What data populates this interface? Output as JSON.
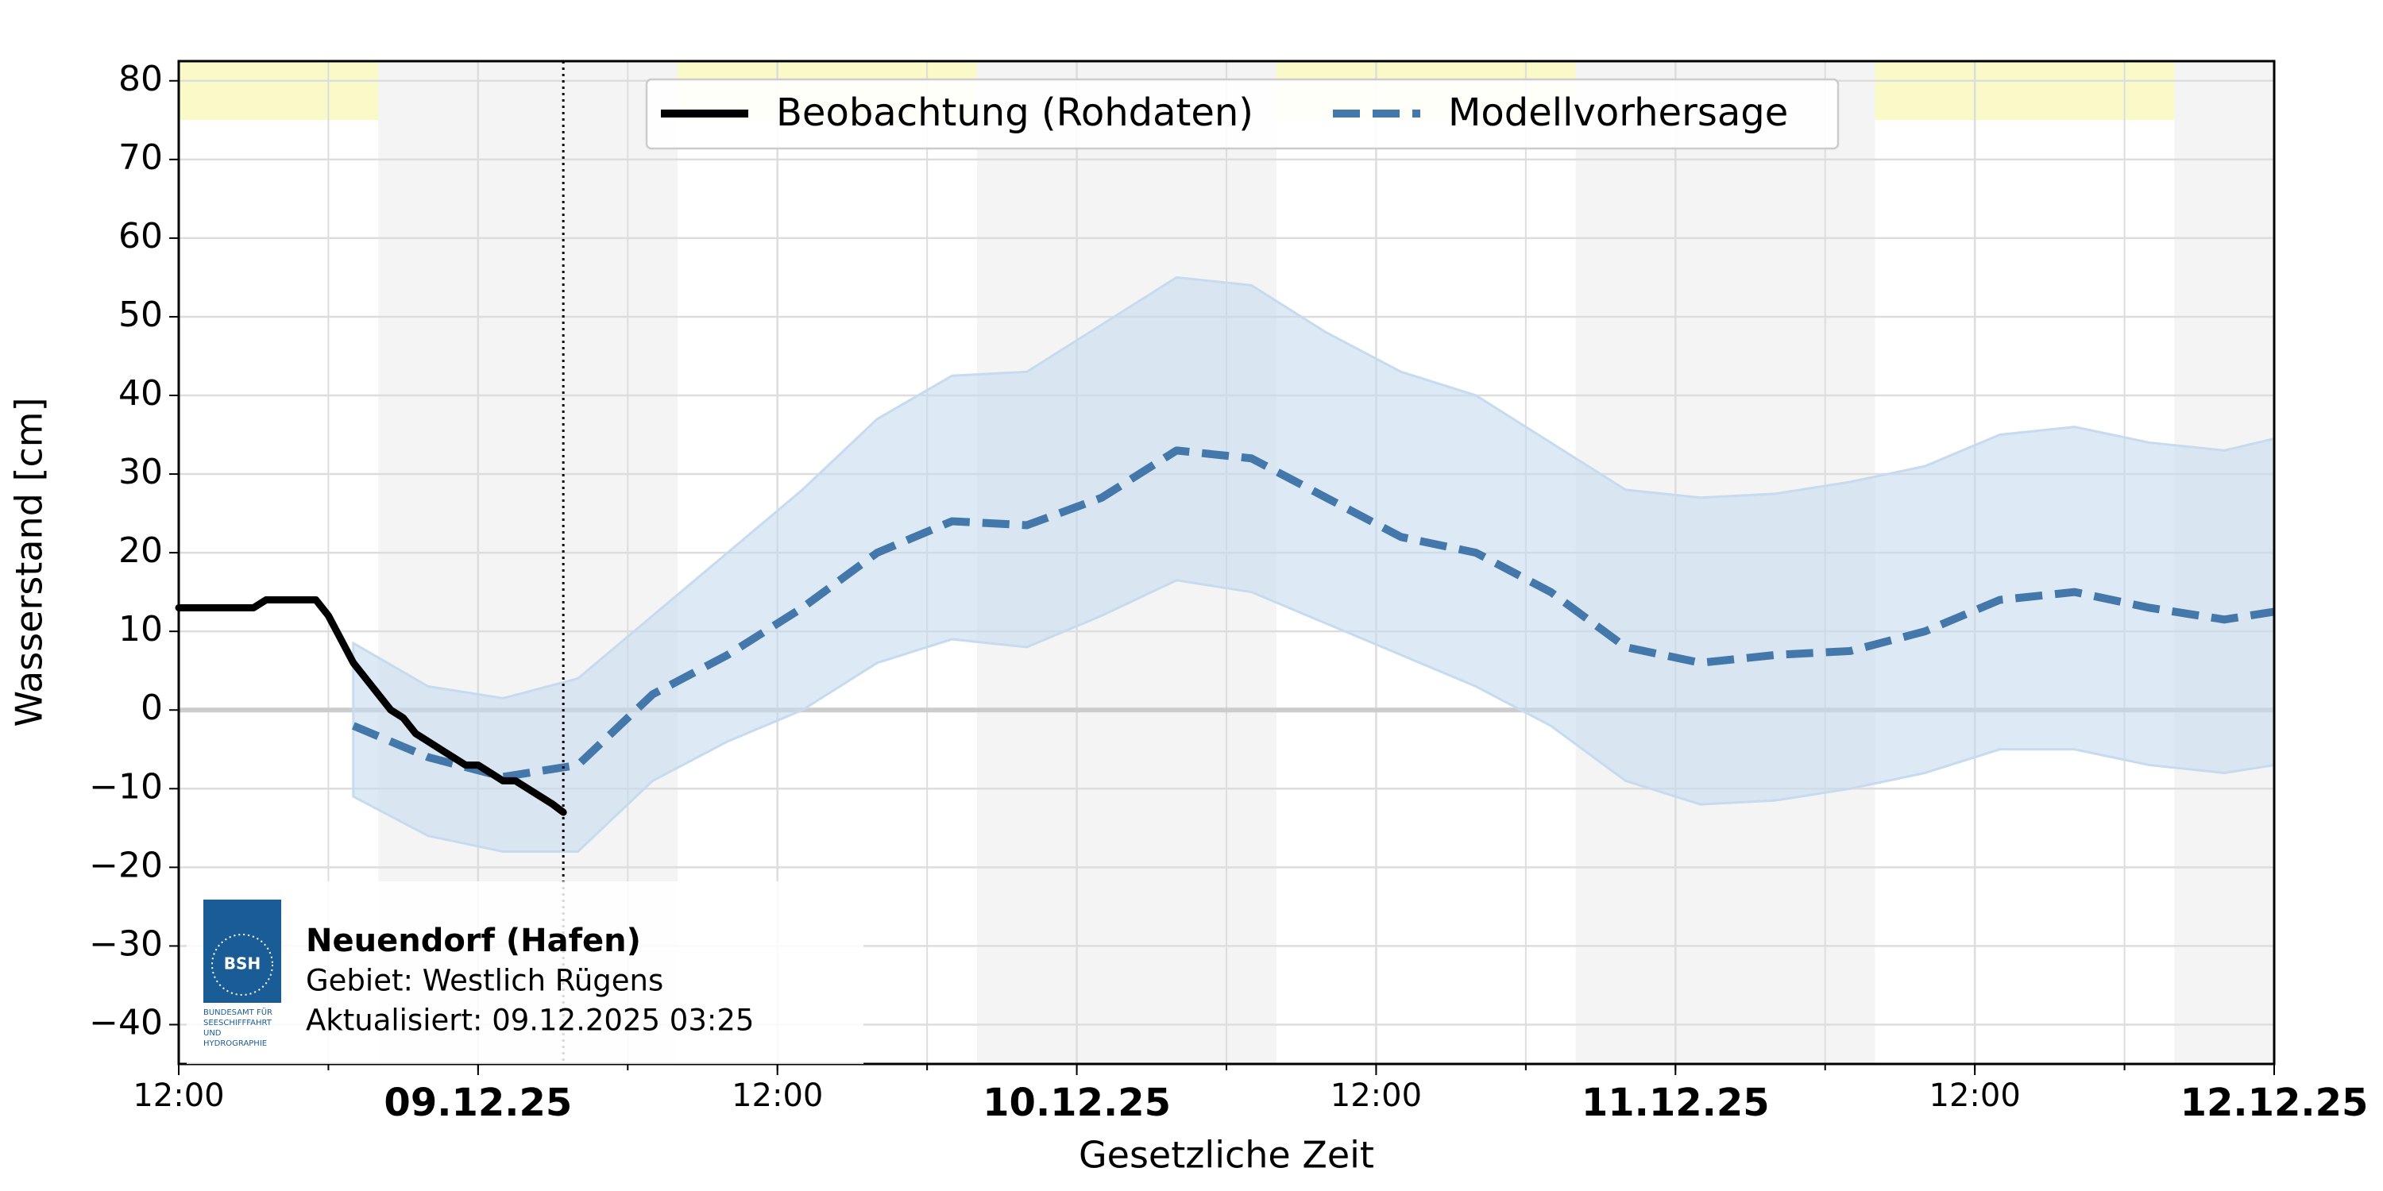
{
  "chart_data": {
    "type": "line",
    "ylabel": "Wasserstand [cm]",
    "xlabel": "Gesetzliche Zeit",
    "xlim": [
      "2025-12-08T12:00",
      "2025-12-12T00:00"
    ],
    "xticks": [
      {
        "value": "2025-12-08T12:00",
        "label": "12:00"
      },
      {
        "value": "2025-12-09T00:00",
        "label": "09.12.25"
      },
      {
        "value": "2025-12-09T12:00",
        "label": "12:00"
      },
      {
        "value": "2025-12-10T00:00",
        "label": "10.12.25"
      },
      {
        "value": "2025-12-10T12:00",
        "label": "12:00"
      },
      {
        "value": "2025-12-11T00:00",
        "label": "11.12.25"
      },
      {
        "value": "2025-12-11T12:00",
        "label": "12:00"
      },
      {
        "value": "2025-12-12T00:00",
        "label": "12.12.25"
      }
    ],
    "ylim": [
      -45,
      82.5
    ],
    "yticks": [
      {
        "value": -40,
        "label": "−40"
      },
      {
        "value": -30,
        "label": "−30"
      },
      {
        "value": -20,
        "label": "−20"
      },
      {
        "value": -10,
        "label": "−10"
      },
      0,
      10,
      20,
      30,
      40,
      50,
      60,
      70,
      80
    ],
    "grid": true,
    "hline": 0,
    "now": "2025-12-09T03:25",
    "highlight_band": {
      "from": 75,
      "to": 82.5,
      "color": "#fafac8"
    },
    "night_bands": [
      [
        "2025-12-08T20:00",
        "2025-12-09T08:00"
      ],
      [
        "2025-12-09T20:00",
        "2025-12-10T08:00"
      ],
      [
        "2025-12-10T20:00",
        "2025-12-11T08:00"
      ],
      [
        "2025-12-11T20:00",
        "2025-12-12T00:00"
      ]
    ],
    "legend": "upper center",
    "series": [
      {
        "name": "Beobachtung (Rohdaten)",
        "color": "#000000",
        "style": "solid",
        "x": [
          "2025-12-08T12:00",
          "2025-12-08T12:30",
          "2025-12-08T13:00",
          "2025-12-08T13:30",
          "2025-12-08T14:00",
          "2025-12-08T14:30",
          "2025-12-08T15:00",
          "2025-12-08T15:30",
          "2025-12-08T16:00",
          "2025-12-08T16:30",
          "2025-12-08T17:00",
          "2025-12-08T17:30",
          "2025-12-08T18:00",
          "2025-12-08T18:30",
          "2025-12-08T19:00",
          "2025-12-08T19:30",
          "2025-12-08T20:00",
          "2025-12-08T20:30",
          "2025-12-08T21:00",
          "2025-12-08T21:30",
          "2025-12-08T22:00",
          "2025-12-08T22:30",
          "2025-12-08T23:00",
          "2025-12-08T23:30",
          "2025-12-09T00:00",
          "2025-12-09T00:30",
          "2025-12-09T01:00",
          "2025-12-09T01:30",
          "2025-12-09T02:00",
          "2025-12-09T02:30",
          "2025-12-09T03:00",
          "2025-12-09T03:25"
        ],
        "values": [
          13,
          13,
          13,
          13,
          13,
          13,
          13,
          14,
          14,
          14,
          14,
          14,
          12,
          9,
          6,
          4,
          2,
          0,
          -1,
          -3,
          -4,
          -5,
          -6,
          -7,
          -7,
          -8,
          -9,
          -9,
          -10,
          -11,
          -12,
          -13
        ]
      },
      {
        "name": "Modellvorhersage",
        "color": "#4477aa",
        "style": "dashed",
        "band_color": "#c6dbef",
        "x": [
          "2025-12-08T19:00",
          "2025-12-08T22:00",
          "2025-12-09T01:00",
          "2025-12-09T04:00",
          "2025-12-09T07:00",
          "2025-12-09T10:00",
          "2025-12-09T13:00",
          "2025-12-09T16:00",
          "2025-12-09T19:00",
          "2025-12-09T22:00",
          "2025-12-10T01:00",
          "2025-12-10T04:00",
          "2025-12-10T07:00",
          "2025-12-10T10:00",
          "2025-12-10T13:00",
          "2025-12-10T16:00",
          "2025-12-10T19:00",
          "2025-12-10T22:00",
          "2025-12-11T01:00",
          "2025-12-11T04:00",
          "2025-12-11T07:00",
          "2025-12-11T10:00",
          "2025-12-11T13:00",
          "2025-12-11T16:00",
          "2025-12-11T19:00",
          "2025-12-11T22:00",
          "2025-12-12T00:00"
        ],
        "values": [
          -2,
          -6,
          -8.5,
          -7,
          2,
          7,
          13,
          20,
          24,
          23.5,
          27,
          33,
          32,
          27,
          22,
          20,
          15,
          8,
          6,
          7,
          7.5,
          10,
          14,
          15,
          13,
          11.5,
          12.5
        ],
        "lower": [
          -11,
          -16,
          -18,
          -18,
          -9,
          -4,
          0,
          6,
          9,
          8,
          12,
          16.5,
          15,
          11,
          7,
          3,
          -2,
          -9,
          -12,
          -11.5,
          -10,
          -8,
          -5,
          -5,
          -7,
          -8,
          -7
        ],
        "upper": [
          8.5,
          3,
          1.5,
          4,
          12,
          20,
          28,
          37,
          42.5,
          43,
          49,
          55,
          54,
          48,
          43,
          40,
          34,
          28,
          27,
          27.5,
          29,
          31,
          35,
          36,
          34,
          33,
          34.5
        ]
      }
    ],
    "info": {
      "station": "Neuendorf (Hafen)",
      "area": "Gebiet: Westlich Rügens",
      "updated": "Aktualisiert: 09.12.2025 03:25",
      "logo_text": [
        "BSH",
        "BUNDESAMT FÜR",
        "SEESCHIFFFAHRT",
        "UND",
        "HYDROGRAPHIE"
      ]
    }
  }
}
